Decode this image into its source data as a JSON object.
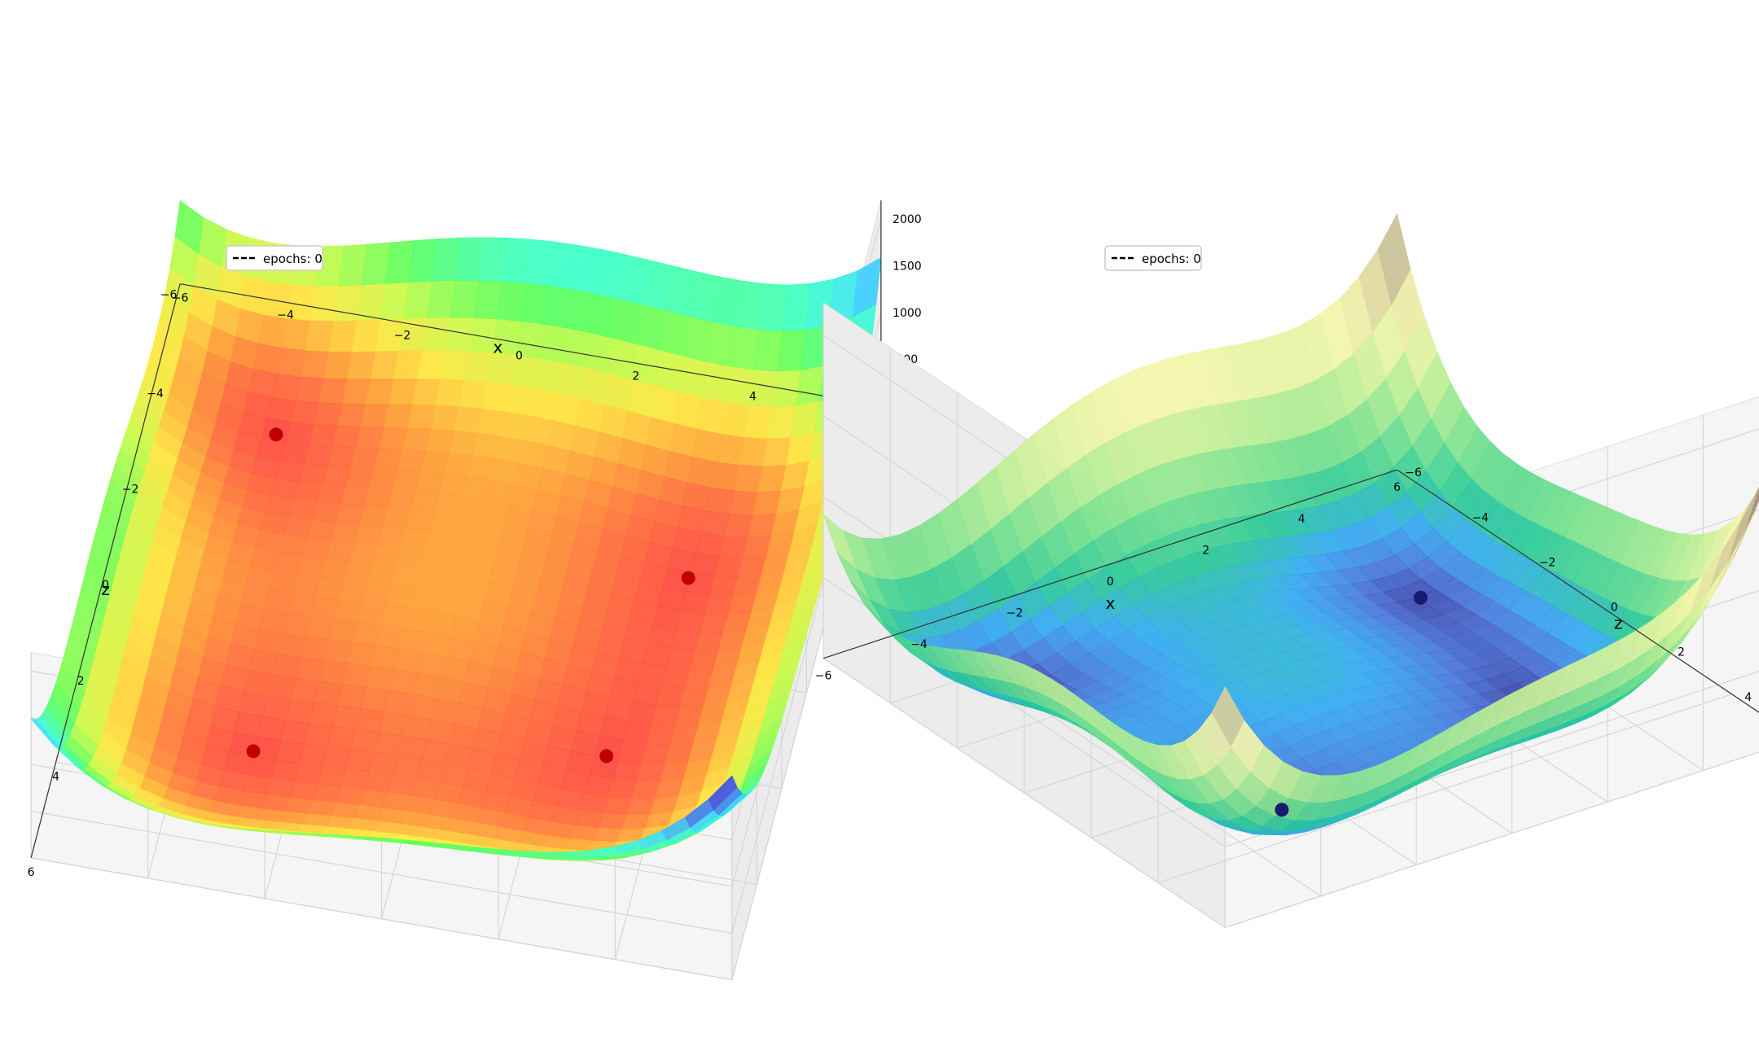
{
  "chart_data": [
    {
      "type": "surface3d",
      "function": "z = (x^2 + y - 11)^2 + (x + y^2 - 7)^2",
      "xlabel": "x",
      "ylabel": "z",
      "x_ticks": [
        "−6",
        "−4",
        "−2",
        "0",
        "2",
        "4",
        "6"
      ],
      "y_ticks": [
        "−6",
        "−4",
        "−2",
        "0",
        "2",
        "4",
        "6"
      ],
      "z_ticks": [
        "0",
        "500",
        "1000",
        "1500",
        "2000"
      ],
      "xlim": [
        -6,
        6
      ],
      "ylim": [
        -6,
        6
      ],
      "zlim": [
        0,
        2200
      ],
      "colormap": "jet-like",
      "grid": true,
      "legend": {
        "position": "top-left",
        "entries": [
          "epochs: 0"
        ]
      },
      "points": [
        {
          "x": 3.0,
          "y": 2.0,
          "z": 0
        },
        {
          "x": -2.805,
          "y": 3.131,
          "z": 0
        },
        {
          "x": -3.779,
          "y": -3.283,
          "z": 0
        },
        {
          "x": 3.584,
          "y": -1.848,
          "z": 0
        }
      ],
      "point_color": "#c00000"
    },
    {
      "type": "surface3d",
      "function": "z = (x^2 + y - 11)^2 + (x + y^2 - 7)^2",
      "xlabel": "x",
      "ylabel": "z",
      "x_ticks": [
        "−6",
        "−4",
        "−2",
        "0",
        "2",
        "4",
        "6"
      ],
      "y_ticks": [
        "−6",
        "−4",
        "−2",
        "0",
        "2",
        "4",
        "6"
      ],
      "z_ticks": [
        "0",
        "500",
        "1000",
        "1500",
        "2000"
      ],
      "xlim": [
        -6,
        6
      ],
      "ylim": [
        -6,
        6
      ],
      "zlim": [
        0,
        2200
      ],
      "colormap": "terrain-like",
      "grid": true,
      "legend": {
        "position": "top-left",
        "entries": [
          "epochs: 0"
        ]
      },
      "points": [
        {
          "x": -2.805,
          "y": 3.131,
          "z": 0
        },
        {
          "x": 3.584,
          "y": -1.848,
          "z": 0
        }
      ],
      "point_color": "#1a1a6e"
    }
  ]
}
